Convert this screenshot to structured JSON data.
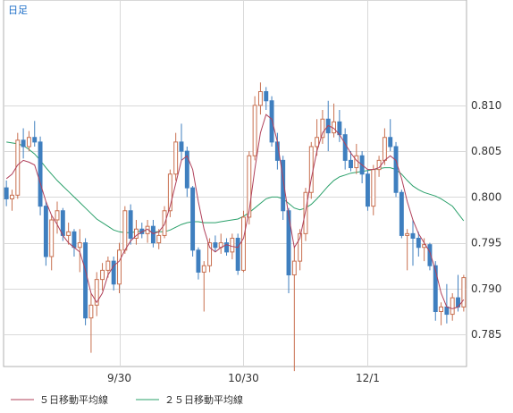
{
  "period_label": "日足",
  "legend": [
    {
      "label": "５日移動平均線",
      "color": "#b0405a"
    },
    {
      "label": "２５日移動平均線",
      "color": "#2aa06a"
    }
  ],
  "colors": {
    "up": "#c87050",
    "down": "#3f7fbf",
    "grid": "#d9d9d9",
    "frame": "#b0b0b0"
  },
  "chart_data": {
    "type": "candlestick",
    "ylim": [
      0.7815,
      0.8215
    ],
    "y_ticks": [
      0.785,
      0.79,
      0.795,
      0.8,
      0.805,
      0.81
    ],
    "y_tick_labels": [
      "0.785",
      "0.790",
      "0.795",
      "0.800",
      "0.805",
      "0.810"
    ],
    "x_tick_labels": [
      {
        "index": 20,
        "label": "9/30"
      },
      {
        "index": 42,
        "label": "10/30"
      },
      {
        "index": 64,
        "label": "12/1"
      }
    ],
    "grid": true,
    "legend_position": "bottom-left",
    "ohlc": [
      [
        0.801,
        0.8018,
        0.799,
        0.7998
      ],
      [
        0.7998,
        0.8008,
        0.7985,
        0.8002
      ],
      [
        0.8002,
        0.807,
        0.7998,
        0.8062
      ],
      [
        0.8062,
        0.8075,
        0.8042,
        0.8055
      ],
      [
        0.8055,
        0.8072,
        0.805,
        0.8065
      ],
      [
        0.8065,
        0.8083,
        0.8055,
        0.806
      ],
      [
        0.806,
        0.8066,
        0.798,
        0.799
      ],
      [
        0.799,
        0.7995,
        0.7925,
        0.7935
      ],
      [
        0.7935,
        0.798,
        0.792,
        0.7975
      ],
      [
        0.7975,
        0.7995,
        0.796,
        0.7985
      ],
      [
        0.7985,
        0.7988,
        0.7952,
        0.7958
      ],
      [
        0.7958,
        0.7972,
        0.7948,
        0.7962
      ],
      [
        0.7962,
        0.7965,
        0.7935,
        0.7945
      ],
      [
        0.7945,
        0.7965,
        0.7918,
        0.795
      ],
      [
        0.795,
        0.7955,
        0.786,
        0.7868
      ],
      [
        0.7868,
        0.7895,
        0.783,
        0.7882
      ],
      [
        0.7882,
        0.7918,
        0.787,
        0.791
      ],
      [
        0.791,
        0.7928,
        0.7898,
        0.792
      ],
      [
        0.792,
        0.7935,
        0.7912,
        0.793
      ],
      [
        0.793,
        0.7935,
        0.7898,
        0.7905
      ],
      [
        0.7905,
        0.795,
        0.7895,
        0.7942
      ],
      [
        0.7942,
        0.799,
        0.7938,
        0.7985
      ],
      [
        0.7985,
        0.7992,
        0.7948,
        0.7955
      ],
      [
        0.7955,
        0.7975,
        0.7948,
        0.7965
      ],
      [
        0.7965,
        0.7972,
        0.7955,
        0.796
      ],
      [
        0.796,
        0.7975,
        0.795,
        0.7968
      ],
      [
        0.7968,
        0.7975,
        0.7945,
        0.795
      ],
      [
        0.795,
        0.7965,
        0.7943,
        0.7958
      ],
      [
        0.7958,
        0.799,
        0.7955,
        0.7985
      ],
      [
        0.7985,
        0.803,
        0.7978,
        0.8025
      ],
      [
        0.8025,
        0.807,
        0.8018,
        0.806
      ],
      [
        0.806,
        0.808,
        0.804,
        0.805
      ],
      [
        0.805,
        0.8055,
        0.8,
        0.801
      ],
      [
        0.801,
        0.8012,
        0.7935,
        0.7942
      ],
      [
        0.7942,
        0.7945,
        0.791,
        0.7918
      ],
      [
        0.7918,
        0.793,
        0.7875,
        0.7925
      ],
      [
        0.7925,
        0.7955,
        0.7918,
        0.795
      ],
      [
        0.795,
        0.7958,
        0.794,
        0.7945
      ],
      [
        0.7945,
        0.796,
        0.7938,
        0.795
      ],
      [
        0.795,
        0.7955,
        0.7936,
        0.794
      ],
      [
        0.794,
        0.796,
        0.7932,
        0.7955
      ],
      [
        0.7955,
        0.796,
        0.7915,
        0.792
      ],
      [
        0.792,
        0.7985,
        0.7918,
        0.7978
      ],
      [
        0.7978,
        0.805,
        0.797,
        0.8045
      ],
      [
        0.8045,
        0.811,
        0.804,
        0.81
      ],
      [
        0.81,
        0.8125,
        0.809,
        0.8115
      ],
      [
        0.8115,
        0.812,
        0.8095,
        0.8105
      ],
      [
        0.8105,
        0.811,
        0.8055,
        0.806
      ],
      [
        0.806,
        0.807,
        0.803,
        0.804
      ],
      [
        0.804,
        0.8045,
        0.7975,
        0.7985
      ],
      [
        0.7985,
        0.7988,
        0.7895,
        0.7915
      ],
      [
        0.7915,
        0.7945,
        0.781,
        0.793
      ],
      [
        0.793,
        0.7965,
        0.792,
        0.796
      ],
      [
        0.796,
        0.801,
        0.7952,
        0.8005
      ],
      [
        0.8005,
        0.806,
        0.7998,
        0.8055
      ],
      [
        0.8055,
        0.8085,
        0.8045,
        0.8065
      ],
      [
        0.8065,
        0.8095,
        0.8058,
        0.8085
      ],
      [
        0.8085,
        0.8105,
        0.805,
        0.807
      ],
      [
        0.807,
        0.8102,
        0.8065,
        0.8082
      ],
      [
        0.8082,
        0.8095,
        0.806,
        0.8068
      ],
      [
        0.8068,
        0.8075,
        0.803,
        0.804
      ],
      [
        0.804,
        0.805,
        0.8028,
        0.8032
      ],
      [
        0.8032,
        0.8058,
        0.8025,
        0.8045
      ],
      [
        0.8045,
        0.805,
        0.8015,
        0.8025
      ],
      [
        0.8025,
        0.803,
        0.7985,
        0.799
      ],
      [
        0.799,
        0.8035,
        0.798,
        0.803
      ],
      [
        0.803,
        0.8045,
        0.8022,
        0.804
      ],
      [
        0.804,
        0.8075,
        0.8035,
        0.8065
      ],
      [
        0.8065,
        0.8085,
        0.805,
        0.8055
      ],
      [
        0.8055,
        0.806,
        0.8,
        0.8005
      ],
      [
        0.8005,
        0.8008,
        0.7955,
        0.7958
      ],
      [
        0.7958,
        0.7965,
        0.792,
        0.796
      ],
      [
        0.796,
        0.7975,
        0.7925,
        0.7955
      ],
      [
        0.7955,
        0.7962,
        0.7935,
        0.7945
      ],
      [
        0.7945,
        0.7955,
        0.793,
        0.7948
      ],
      [
        0.7948,
        0.795,
        0.792,
        0.7925
      ],
      [
        0.7925,
        0.793,
        0.7865,
        0.7875
      ],
      [
        0.7875,
        0.7885,
        0.786,
        0.788
      ],
      [
        0.788,
        0.7905,
        0.7862,
        0.7872
      ],
      [
        0.7872,
        0.7895,
        0.7865,
        0.789
      ],
      [
        0.789,
        0.7915,
        0.7875,
        0.788
      ],
      [
        0.788,
        0.7915,
        0.7875,
        0.7912
      ]
    ],
    "ma5": [
      0.802,
      0.8025,
      0.8035,
      0.804,
      0.8038,
      0.8035,
      0.8015,
      0.7995,
      0.798,
      0.797,
      0.7958,
      0.795,
      0.7945,
      0.794,
      0.792,
      0.7895,
      0.7885,
      0.7895,
      0.7915,
      0.7925,
      0.793,
      0.7942,
      0.7952,
      0.7958,
      0.7962,
      0.7965,
      0.796,
      0.7962,
      0.797,
      0.799,
      0.8015,
      0.804,
      0.8045,
      0.803,
      0.7995,
      0.7965,
      0.7945,
      0.794,
      0.7945,
      0.7948,
      0.7946,
      0.7945,
      0.7955,
      0.7985,
      0.803,
      0.807,
      0.809,
      0.8085,
      0.806,
      0.802,
      0.798,
      0.7945,
      0.7955,
      0.7985,
      0.802,
      0.805,
      0.807,
      0.8078,
      0.8075,
      0.8068,
      0.8058,
      0.8048,
      0.804,
      0.8035,
      0.803,
      0.803,
      0.8032,
      0.804,
      0.8045,
      0.804,
      0.802,
      0.7995,
      0.7975,
      0.796,
      0.795,
      0.794,
      0.792,
      0.7895,
      0.788,
      0.7878,
      0.788,
      0.7888
    ],
    "ma25": [
      0.806,
      0.8059,
      0.8058,
      0.8056,
      0.8052,
      0.8047,
      0.804,
      0.8032,
      0.8025,
      0.8018,
      0.8012,
      0.8006,
      0.8,
      0.7994,
      0.7988,
      0.7982,
      0.7976,
      0.7972,
      0.7968,
      0.7964,
      0.7962,
      0.7961,
      0.7961,
      0.7962,
      0.7963,
      0.7963,
      0.7962,
      0.7962,
      0.7962,
      0.7964,
      0.7967,
      0.797,
      0.7972,
      0.7973,
      0.7973,
      0.7972,
      0.7972,
      0.7972,
      0.7973,
      0.7974,
      0.7975,
      0.7976,
      0.7979,
      0.7983,
      0.7988,
      0.7993,
      0.7998,
      0.8,
      0.8,
      0.7998,
      0.7993,
      0.7988,
      0.7986,
      0.7988,
      0.7992,
      0.7998,
      0.8005,
      0.8012,
      0.8018,
      0.8022,
      0.8024,
      0.8026,
      0.8027,
      0.8028,
      0.8029,
      0.803,
      0.8031,
      0.8032,
      0.8032,
      0.803,
      0.8025,
      0.8018,
      0.8012,
      0.8008,
      0.8005,
      0.8003,
      0.8001,
      0.7998,
      0.7994,
      0.799,
      0.7982,
      0.7974
    ]
  }
}
